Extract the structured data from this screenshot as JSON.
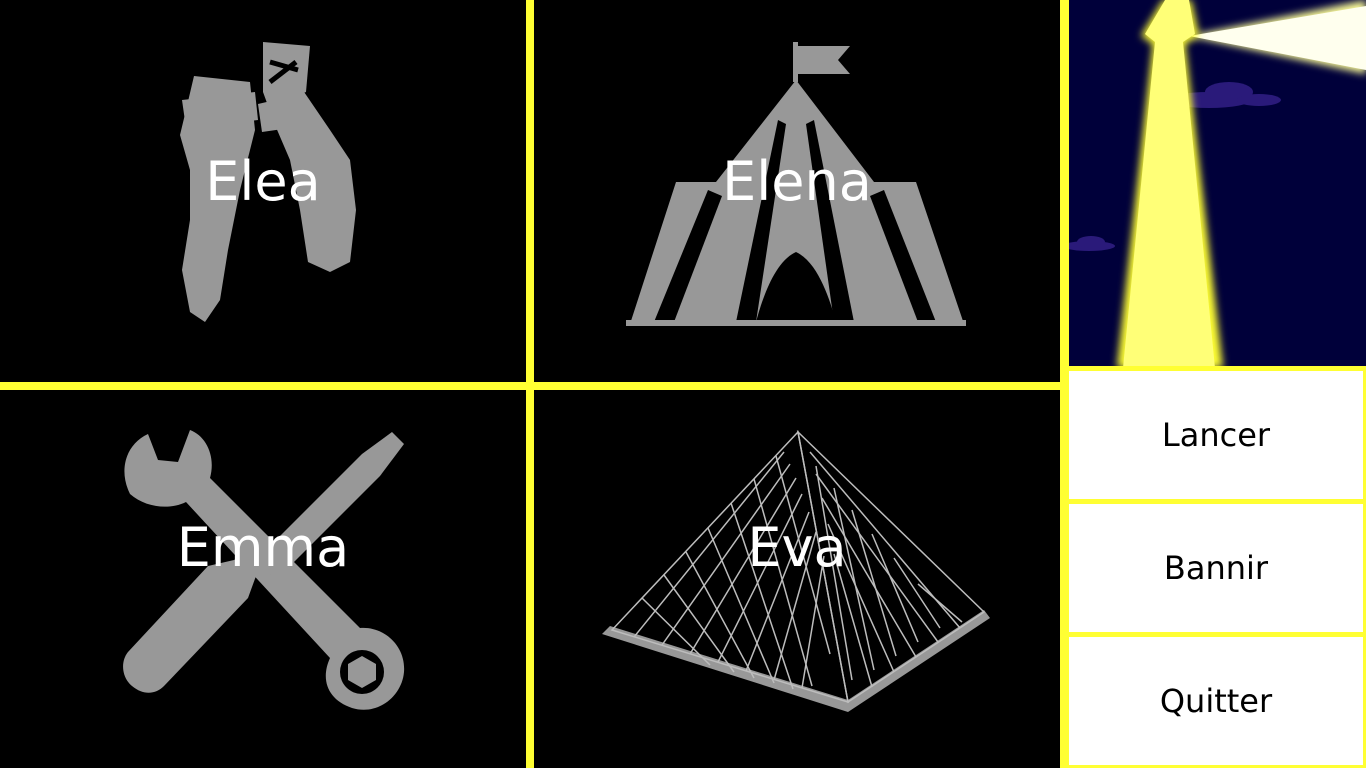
{
  "players": [
    {
      "name": "Elea",
      "icon": "ballet-shoes-icon"
    },
    {
      "name": "Elena",
      "icon": "circus-tent-icon"
    },
    {
      "name": "Emma",
      "icon": "wrench-screwdriver-icon"
    },
    {
      "name": "Eva",
      "icon": "pyramid-icon"
    }
  ],
  "menu": {
    "launch": "Lancer",
    "ban": "Bannir",
    "quit": "Quitter"
  },
  "colors": {
    "accent": "#ffff33",
    "icon_gray": "#989898",
    "night_sky": "#00003a",
    "lighthouse": "#ffff77"
  }
}
